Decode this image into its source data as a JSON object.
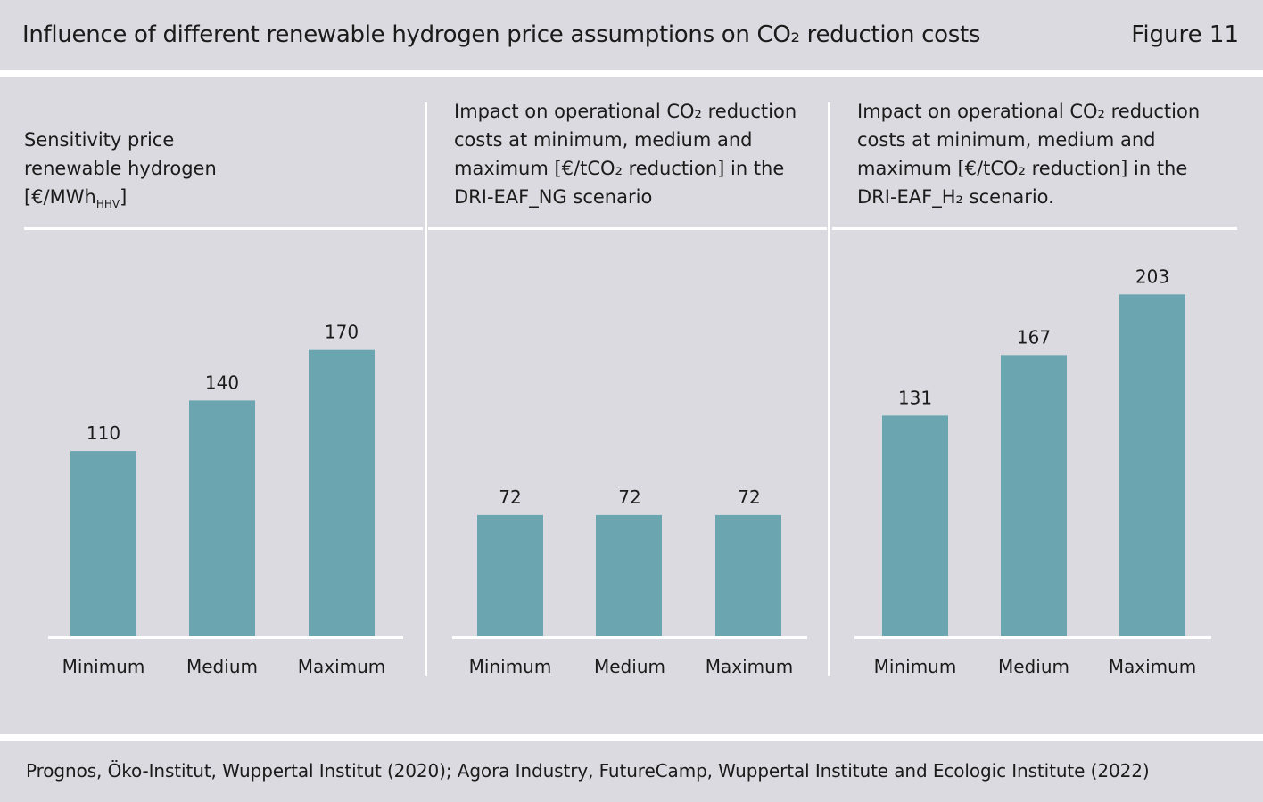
{
  "header": {
    "title": "Influence of different renewable hydrogen price assumptions on CO₂ reduction costs",
    "figure_label": "Figure 11"
  },
  "panels": [
    {
      "title_lines": [
        "Sensitivity price",
        "renewable hydrogen"
      ],
      "unit_main": "[€/MWh",
      "unit_sub": "HHV",
      "unit_end": "]"
    },
    {
      "title_lines": [
        "Impact on operational CO₂ reduction",
        "costs at minimum, medium and",
        "maximum [€/tCO₂ reduction] in the",
        "DRI-EAF_NG scenario"
      ]
    },
    {
      "title_lines": [
        "Impact on operational CO₂ reduction",
        "costs at minimum, medium and",
        "maximum [€/tCO₂ reduction] in the",
        "DRI-EAF_H₂ scenario."
      ]
    }
  ],
  "chart_data": [
    {
      "type": "bar",
      "categories": [
        "Minimum",
        "Medium",
        "Maximum"
      ],
      "values": [
        110,
        140,
        170
      ],
      "ylim": [
        0,
        210
      ],
      "grid": false,
      "color": "#6ba5b0"
    },
    {
      "type": "bar",
      "categories": [
        "Minimum",
        "Medium",
        "Maximum"
      ],
      "values": [
        72,
        72,
        72
      ],
      "ylim": [
        0,
        210
      ],
      "grid": false,
      "color": "#6ba5b0"
    },
    {
      "type": "bar",
      "categories": [
        "Minimum",
        "Medium",
        "Maximum"
      ],
      "values": [
        131,
        167,
        203
      ],
      "ylim": [
        0,
        210
      ],
      "grid": false,
      "color": "#6ba5b0"
    }
  ],
  "footer": {
    "source": "Prognos, Öko-Institut, Wuppertal Institut (2020); Agora Industry, FutureCamp, Wuppertal Institute and Ecologic Institute (2022)"
  },
  "colors": {
    "background": "#dadae0",
    "bar": "#6ba5b0",
    "divider": "#ffffff"
  }
}
